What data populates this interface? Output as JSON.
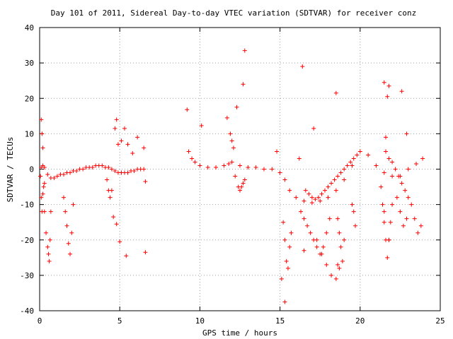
{
  "chart_data": {
    "type": "scatter",
    "title": "Day 101 of 2011, Sidereal Day-to-day VTEC variation (SDTVAR) for receiver conz",
    "xlabel": "GPS time / hours",
    "ylabel": "SDTVAR / TECUs",
    "xlim": [
      0,
      25
    ],
    "ylim": [
      -40,
      40
    ],
    "x_ticks": [
      0,
      5,
      10,
      15,
      20,
      25
    ],
    "y_ticks": [
      -40,
      -30,
      -20,
      -10,
      0,
      10,
      20,
      30,
      40
    ],
    "grid": true,
    "marker": "+",
    "color": "#ff0000",
    "series": [
      {
        "x": [
          0.1,
          0.2,
          0.3,
          0.5,
          0.7,
          0.9,
          1.1,
          1.3,
          1.5,
          1.7,
          1.9,
          2.1,
          2.3,
          2.5,
          2.7,
          2.9,
          3.1,
          3.3,
          3.5,
          3.7,
          3.9,
          4.1,
          4.3,
          4.5,
          4.7,
          4.9,
          5.1,
          5.3,
          5.5,
          5.7,
          5.9,
          6.1,
          6.3,
          6.5,
          0.1,
          0.15,
          0.2,
          0.25,
          0.3,
          0.4,
          0.5,
          0.55,
          0.6,
          0.65,
          0.7,
          1.5,
          1.6,
          1.7,
          1.8,
          1.9,
          2.0,
          2.1,
          4.2,
          4.3,
          4.4,
          4.5,
          4.7,
          4.8,
          4.9,
          5.1,
          5.3,
          5.5,
          5.8,
          6.1,
          6.5,
          6.6,
          4.6,
          4.8,
          5.0,
          5.4,
          6.6,
          0.05,
          0.1,
          0.15,
          0.2,
          0.3,
          9.3,
          9.5,
          9.7,
          10.0,
          10.5,
          11.0,
          11.5,
          11.8,
          12.0,
          12.5,
          13.0,
          13.5,
          14.0,
          14.5,
          15.0,
          15.3,
          15.6,
          16.0,
          16.5,
          17.0,
          17.5,
          18.0,
          18.5,
          19.0,
          19.5,
          20.0,
          20.5,
          21.0,
          21.5,
          22.0,
          22.5,
          23.0,
          23.5,
          23.9,
          11.9,
          12.0,
          12.1,
          12.2,
          12.4,
          12.5,
          12.6,
          12.7,
          12.8,
          9.2,
          10.1,
          11.7,
          12.3,
          12.7,
          12.8,
          14.8,
          15.2,
          15.3,
          15.4,
          15.5,
          15.6,
          15.7,
          16.3,
          16.5,
          16.7,
          16.9,
          17.1,
          17.3,
          17.5,
          17.7,
          17.9,
          18.1,
          16.6,
          16.8,
          17.0,
          17.2,
          17.4,
          17.6,
          17.8,
          18.0,
          18.2,
          18.4,
          18.6,
          18.8,
          19.0,
          19.2,
          19.4,
          19.6,
          19.8,
          17.3,
          17.6,
          17.9,
          18.2,
          18.5,
          18.7,
          18.6,
          18.7,
          18.8,
          18.9,
          19.0,
          19.5,
          19.6,
          19.7,
          21.3,
          21.4,
          21.5,
          21.6,
          21.7,
          21.8,
          21.9,
          22.0,
          21.6,
          21.8,
          22.0,
          22.2,
          22.4,
          22.6,
          22.8,
          23.0,
          23.2,
          23.4,
          23.6,
          23.8,
          22.3,
          22.5,
          22.7,
          22.9,
          15.1,
          15.3,
          16.4,
          16.5,
          17.1,
          18.5,
          21.5,
          21.7,
          21.8,
          22.6,
          22.9,
          16.2,
          21.5,
          21.8,
          18.6,
          21.6
        ],
        "y": [
          0.5,
          1.0,
          0.5,
          -1.5,
          -2.5,
          -2.5,
          -2.0,
          -1.5,
          -1.5,
          -1.0,
          -1.0,
          -0.5,
          -0.5,
          0,
          0,
          0.5,
          0.5,
          0.5,
          1.0,
          1.0,
          1.0,
          0.5,
          0.5,
          0,
          -0.5,
          -1.0,
          -1.0,
          -1.0,
          -1.0,
          -0.5,
          -0.5,
          0,
          0,
          0,
          14.0,
          10.0,
          6.0,
          -5.0,
          -12.0,
          -18.0,
          -22.0,
          -24.0,
          -26.0,
          -20.0,
          -12.0,
          -8.0,
          -12.0,
          -16.0,
          -21.0,
          -24.0,
          -18.0,
          -10.0,
          -3.0,
          -6.0,
          -8.0,
          -6.0,
          11.5,
          14.0,
          7.0,
          8.0,
          11.5,
          7.0,
          4.5,
          9.0,
          6.0,
          -3.5,
          -13.5,
          -15.5,
          -20.5,
          -24.5,
          -23.5,
          -2.0,
          -8.0,
          -12.0,
          -7.0,
          -4.0,
          5.0,
          3.0,
          2.0,
          1.0,
          0.5,
          0.5,
          1.0,
          1.5,
          2.0,
          1.0,
          0.5,
          0.5,
          0,
          0,
          -1.0,
          -3.0,
          -6.0,
          -8.0,
          -9.0,
          -9.5,
          -9.0,
          -8.0,
          -6.0,
          -3.0,
          1.0,
          5.0,
          4.0,
          1.0,
          -1.0,
          -2.0,
          -2.0,
          0,
          1.5,
          3.0,
          10.0,
          8.0,
          6.0,
          -2.0,
          -5.0,
          -6.0,
          -5.0,
          -4.0,
          -3.0,
          16.8,
          12.3,
          14.5,
          17.5,
          24.0,
          33.5,
          5.0,
          -15.0,
          -20.0,
          -26.0,
          -28.0,
          -22.0,
          -18.0,
          -12.0,
          -14.0,
          -16.0,
          -18.0,
          -20.0,
          -22.0,
          -24.0,
          -22.0,
          -18.0,
          -14.0,
          -6.0,
          -7.0,
          -8.0,
          -8.5,
          -8.0,
          -7.0,
          -6.0,
          -5.0,
          -4.0,
          -3.0,
          -2.0,
          -1.0,
          0,
          1.0,
          2.0,
          3.0,
          4.0,
          -20.0,
          -24.0,
          -27.0,
          -30.0,
          -31.0,
          -28.0,
          -14.0,
          -18.0,
          -22.0,
          -26.0,
          -20.0,
          -10.0,
          -12.0,
          -16.0,
          -5.0,
          -10.0,
          -15.0,
          -20.0,
          -25.0,
          -20.0,
          -15.0,
          -10.0,
          5.0,
          3.0,
          2.0,
          0,
          -2.0,
          -4.0,
          -6.0,
          -8.0,
          -10.0,
          -14.0,
          -18.0,
          -16.0,
          -8.0,
          -12.0,
          -16.0,
          -14.0,
          -31.0,
          -37.5,
          29.0,
          -23.0,
          11.5,
          21.5,
          24.5,
          20.5,
          23.5,
          22.0,
          10.0,
          3.0,
          -12.0,
          -20.0,
          -27.0,
          9.0
        ]
      }
    ]
  }
}
